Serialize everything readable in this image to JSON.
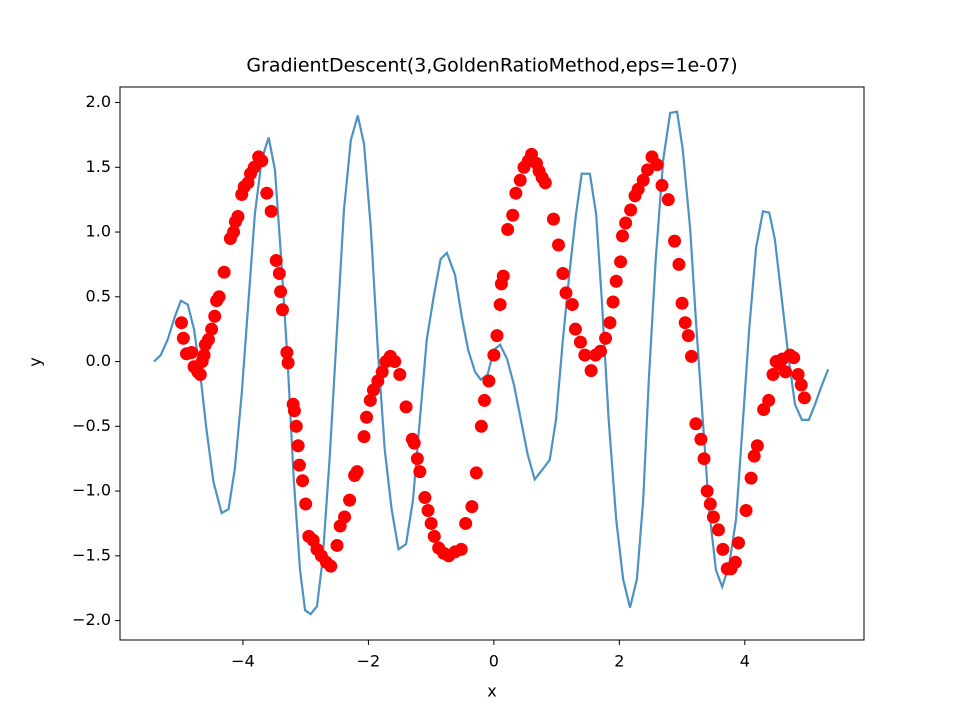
{
  "chart_data": {
    "type": "line",
    "title": "GradientDescent(3,GoldenRatioMethod,eps=1e-07)",
    "x_label": "x",
    "y_label": "y",
    "xlim": [
      -5.96,
      5.9
    ],
    "ylim": [
      -2.15,
      2.12
    ],
    "xticks": [
      {
        "value": -4,
        "label": "−4"
      },
      {
        "value": -2,
        "label": "−2"
      },
      0,
      2,
      4
    ],
    "yticks": [
      {
        "value": -2,
        "label": "−2.0"
      },
      {
        "value": -1.5,
        "label": "−1.5"
      },
      {
        "value": -1,
        "label": "−1.0"
      },
      {
        "value": -0.5,
        "label": "−0.5"
      },
      {
        "value": 0,
        "label": "0.0"
      },
      0.5,
      {
        "value": 1,
        "label": "1.0"
      },
      1.5,
      {
        "value": 2,
        "label": "2.0"
      }
    ],
    "series": [
      {
        "type": "line",
        "color": "#1f77b4",
        "x": [
          -5.42,
          -5.31,
          -5.2,
          -5.09,
          -4.99,
          -4.88,
          -4.78,
          -4.69,
          -4.58,
          -4.47,
          -4.34,
          -4.23,
          -4.13,
          -4.02,
          -3.91,
          -3.81,
          -3.7,
          -3.59,
          -3.49,
          -3.4,
          -3.29,
          -3.19,
          -3.09,
          -3.01,
          -2.92,
          -2.82,
          -2.73,
          -2.62,
          -2.5,
          -2.39,
          -2.28,
          -2.17,
          -2.07,
          -1.96,
          -1.85,
          -1.74,
          -1.63,
          -1.52,
          -1.4,
          -1.29,
          -1.18,
          -1.07,
          -0.96,
          -0.85,
          -0.75,
          -0.62,
          -0.51,
          -0.41,
          -0.3,
          -0.21,
          -0.1,
          0.0,
          0.1,
          0.21,
          0.32,
          0.43,
          0.54,
          0.65,
          0.78,
          0.89,
          0.99,
          1.1,
          1.21,
          1.31,
          1.4,
          1.53,
          1.63,
          1.72,
          1.83,
          1.95,
          2.06,
          2.17,
          2.28,
          2.38,
          2.47,
          2.58,
          2.7,
          2.81,
          2.92,
          3.01,
          3.13,
          3.22,
          3.33,
          3.43,
          3.54,
          3.64,
          3.75,
          3.86,
          3.96,
          4.07,
          4.18,
          4.29,
          4.39,
          4.48,
          4.59,
          4.7,
          4.8,
          4.91,
          5.02,
          5.12,
          5.23,
          5.33
        ],
        "y": [
          0.0,
          0.05,
          0.17,
          0.34,
          0.47,
          0.44,
          0.25,
          -0.06,
          -0.53,
          -0.93,
          -1.17,
          -1.14,
          -0.83,
          -0.25,
          0.48,
          1.14,
          1.56,
          1.73,
          1.48,
          0.86,
          0.02,
          -0.91,
          -1.61,
          -1.92,
          -1.95,
          -1.89,
          -1.53,
          -0.76,
          0.25,
          1.17,
          1.71,
          1.9,
          1.68,
          1.02,
          0.09,
          -0.68,
          -1.14,
          -1.45,
          -1.41,
          -1.07,
          -0.45,
          0.17,
          0.5,
          0.79,
          0.84,
          0.67,
          0.34,
          0.09,
          -0.08,
          -0.14,
          -0.1,
          0.09,
          0.13,
          0.02,
          -0.18,
          -0.45,
          -0.72,
          -0.91,
          -0.83,
          -0.76,
          -0.45,
          0.17,
          0.71,
          1.14,
          1.45,
          1.45,
          1.14,
          0.48,
          -0.45,
          -1.22,
          -1.68,
          -1.9,
          -1.68,
          -1.07,
          -0.14,
          0.79,
          1.56,
          1.92,
          1.93,
          1.64,
          1.02,
          0.32,
          -0.45,
          -1.14,
          -1.61,
          -1.74,
          -1.57,
          -1.22,
          -0.53,
          0.25,
          0.88,
          1.16,
          1.15,
          0.94,
          0.48,
          0.02,
          -0.33,
          -0.45,
          -0.45,
          -0.33,
          -0.18,
          -0.06
        ]
      },
      {
        "type": "scatter",
        "color": "#ff0000",
        "x": [
          -4.98,
          -4.95,
          -4.9,
          -4.82,
          -4.78,
          -4.72,
          -4.68,
          -4.65,
          -4.62,
          -4.6,
          -4.55,
          -4.5,
          -4.45,
          -4.42,
          -4.38,
          -4.3,
          -4.2,
          -4.15,
          -4.12,
          -4.08,
          -4.02,
          -3.98,
          -3.92,
          -3.88,
          -3.82,
          -3.75,
          -3.7,
          -3.62,
          -3.55,
          -3.47,
          -3.42,
          -3.4,
          -3.37,
          -3.3,
          -3.28,
          -3.2,
          -3.18,
          -3.15,
          -3.12,
          -3.1,
          -3.05,
          -3.0,
          -2.95,
          -2.88,
          -2.82,
          -2.75,
          -2.67,
          -2.6,
          -2.5,
          -2.45,
          -2.38,
          -2.3,
          -2.22,
          -2.18,
          -2.07,
          -2.03,
          -1.97,
          -1.92,
          -1.85,
          -1.78,
          -1.72,
          -1.65,
          -1.58,
          -1.5,
          -1.4,
          -1.3,
          -1.27,
          -1.22,
          -1.18,
          -1.1,
          -1.05,
          -1.0,
          -0.95,
          -0.88,
          -0.8,
          -0.72,
          -0.62,
          -0.52,
          -0.45,
          -0.35,
          -0.28,
          -0.2,
          -0.15,
          -0.08,
          0.0,
          0.05,
          0.1,
          0.12,
          0.15,
          0.22,
          0.3,
          0.35,
          0.42,
          0.48,
          0.55,
          0.6,
          0.68,
          0.72,
          0.77,
          0.82,
          0.95,
          1.03,
          1.1,
          1.15,
          1.25,
          1.3,
          1.38,
          1.45,
          1.55,
          1.62,
          1.7,
          1.78,
          1.85,
          1.9,
          1.95,
          2.02,
          2.05,
          2.1,
          2.18,
          2.25,
          2.3,
          2.38,
          2.45,
          2.52,
          2.6,
          2.68,
          2.78,
          2.88,
          2.95,
          3.0,
          3.05,
          3.1,
          3.15,
          3.22,
          3.3,
          3.35,
          3.4,
          3.45,
          3.5,
          3.58,
          3.65,
          3.72,
          3.78,
          3.85,
          3.9,
          4.02,
          4.1,
          4.15,
          4.2,
          4.3,
          4.38,
          4.45,
          4.5,
          4.55,
          4.6,
          4.65,
          4.72,
          4.78,
          4.85,
          4.9,
          4.95
        ],
        "y": [
          0.3,
          0.18,
          0.06,
          0.07,
          -0.04,
          -0.08,
          -0.1,
          0.0,
          0.05,
          0.13,
          0.17,
          0.25,
          0.35,
          0.47,
          0.5,
          0.69,
          0.95,
          1.0,
          1.08,
          1.12,
          1.29,
          1.35,
          1.38,
          1.45,
          1.5,
          1.58,
          1.55,
          1.3,
          1.16,
          0.78,
          0.68,
          0.54,
          0.4,
          0.07,
          -0.01,
          -0.33,
          -0.38,
          -0.5,
          -0.65,
          -0.8,
          -0.92,
          -1.1,
          -1.35,
          -1.38,
          -1.45,
          -1.5,
          -1.55,
          -1.58,
          -1.42,
          -1.27,
          -1.2,
          -1.07,
          -0.88,
          -0.85,
          -0.58,
          -0.43,
          -0.3,
          -0.22,
          -0.15,
          -0.08,
          0.0,
          0.04,
          0.0,
          -0.1,
          -0.35,
          -0.6,
          -0.63,
          -0.75,
          -0.85,
          -1.05,
          -1.15,
          -1.25,
          -1.35,
          -1.44,
          -1.48,
          -1.5,
          -1.47,
          -1.45,
          -1.25,
          -1.12,
          -0.86,
          -0.5,
          -0.3,
          -0.15,
          0.05,
          0.2,
          0.44,
          0.6,
          0.66,
          1.02,
          1.13,
          1.3,
          1.4,
          1.5,
          1.55,
          1.6,
          1.53,
          1.47,
          1.42,
          1.38,
          1.1,
          0.9,
          0.68,
          0.53,
          0.44,
          0.25,
          0.15,
          0.05,
          -0.07,
          0.05,
          0.08,
          0.18,
          0.3,
          0.46,
          0.62,
          0.77,
          0.97,
          1.07,
          1.17,
          1.28,
          1.33,
          1.4,
          1.48,
          1.58,
          1.52,
          1.36,
          1.25,
          0.93,
          0.75,
          0.45,
          0.3,
          0.2,
          0.04,
          -0.48,
          -0.6,
          -0.75,
          -1.0,
          -1.1,
          -1.2,
          -1.3,
          -1.45,
          -1.6,
          -1.6,
          -1.55,
          -1.4,
          -1.15,
          -0.9,
          -0.73,
          -0.65,
          -0.37,
          -0.3,
          -0.1,
          0.0,
          -0.02,
          0.02,
          -0.08,
          0.05,
          0.03,
          -0.1,
          -0.18,
          -0.28
        ]
      }
    ]
  }
}
